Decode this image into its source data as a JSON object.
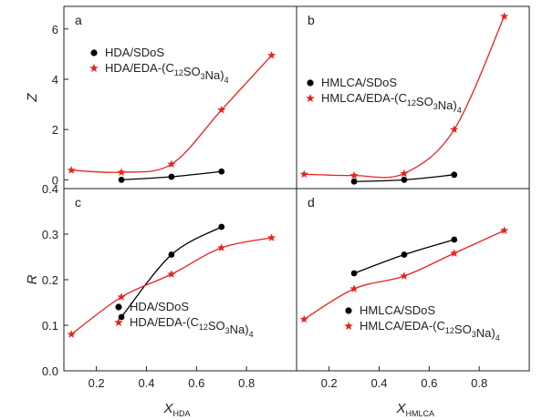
{
  "chart_data": [
    {
      "type": "scatter",
      "panel_label": "a",
      "ylabel": "Z",
      "xlabel": "",
      "xlim": [
        0.07,
        1.0
      ],
      "ylim": [
        -0.35,
        6.9
      ],
      "yticks": [
        0,
        2,
        4,
        6
      ],
      "xticks": [],
      "series": [
        {
          "name": "HDA/SDoS",
          "marker": "circle",
          "color": "#000000",
          "x": [
            0.3,
            0.5,
            0.7
          ],
          "y": [
            0.0,
            0.12,
            0.33
          ]
        },
        {
          "name": "HDA/EDA-(C12SO3Na)4",
          "marker": "star",
          "color": "#e8221b",
          "x": [
            0.1,
            0.3,
            0.5,
            0.7,
            0.9
          ],
          "y": [
            0.38,
            0.3,
            0.62,
            2.78,
            4.95
          ]
        }
      ]
    },
    {
      "type": "scatter",
      "panel_label": "b",
      "ylabel": "",
      "xlabel": "",
      "xlim": [
        0.07,
        1.0
      ],
      "ylim": [
        -0.35,
        6.9
      ],
      "yticks": [],
      "xticks": [],
      "series": [
        {
          "name": "HMLCA/SDoS",
          "marker": "circle",
          "color": "#000000",
          "x": [
            0.3,
            0.5,
            0.7
          ],
          "y": [
            -0.07,
            0.0,
            0.2
          ]
        },
        {
          "name": "HMLCA/EDA-(C12SO3Na)4",
          "marker": "star",
          "color": "#e8221b",
          "x": [
            0.1,
            0.3,
            0.5,
            0.7,
            0.9
          ],
          "y": [
            0.22,
            0.17,
            0.25,
            2.0,
            6.5
          ]
        }
      ]
    },
    {
      "type": "scatter",
      "panel_label": "c",
      "ylabel": "R",
      "xlabel": "X",
      "xlabel_sub": "HDA",
      "xlim": [
        0.07,
        1.0
      ],
      "ylim": [
        0.0,
        0.4
      ],
      "yticks": [
        "0.0",
        "0.1",
        "0.2",
        "0.3",
        "0.4"
      ],
      "xticks": [
        "0.2",
        "0.4",
        "0.6",
        "0.8"
      ],
      "series": [
        {
          "name": "HDA/SDoS",
          "marker": "circle",
          "color": "#000000",
          "x": [
            0.3,
            0.5,
            0.7
          ],
          "y": [
            0.118,
            0.255,
            0.316
          ]
        },
        {
          "name": "HDA/EDA-(C12SO3Na)4",
          "marker": "star",
          "color": "#e8221b",
          "x": [
            0.1,
            0.3,
            0.5,
            0.7,
            0.9
          ],
          "y": [
            0.08,
            0.162,
            0.212,
            0.27,
            0.292
          ]
        }
      ]
    },
    {
      "type": "scatter",
      "panel_label": "d",
      "ylabel": "",
      "xlabel": "X",
      "xlabel_sub": "HMLCA",
      "xlim": [
        0.07,
        1.0
      ],
      "ylim": [
        0.0,
        0.4
      ],
      "yticks": [],
      "xticks": [
        "0.2",
        "0.4",
        "0.6",
        "0.8"
      ],
      "series": [
        {
          "name": "HMLCA/SDoS",
          "marker": "circle",
          "color": "#000000",
          "x": [
            0.3,
            0.5,
            0.7
          ],
          "y": [
            0.214,
            0.255,
            0.288
          ]
        },
        {
          "name": "HMLCA/EDA-(C12SO3Na)4",
          "marker": "star",
          "color": "#e8221b",
          "x": [
            0.1,
            0.3,
            0.5,
            0.7,
            0.9
          ],
          "y": [
            0.113,
            0.18,
            0.208,
            0.258,
            0.308
          ]
        }
      ]
    }
  ]
}
